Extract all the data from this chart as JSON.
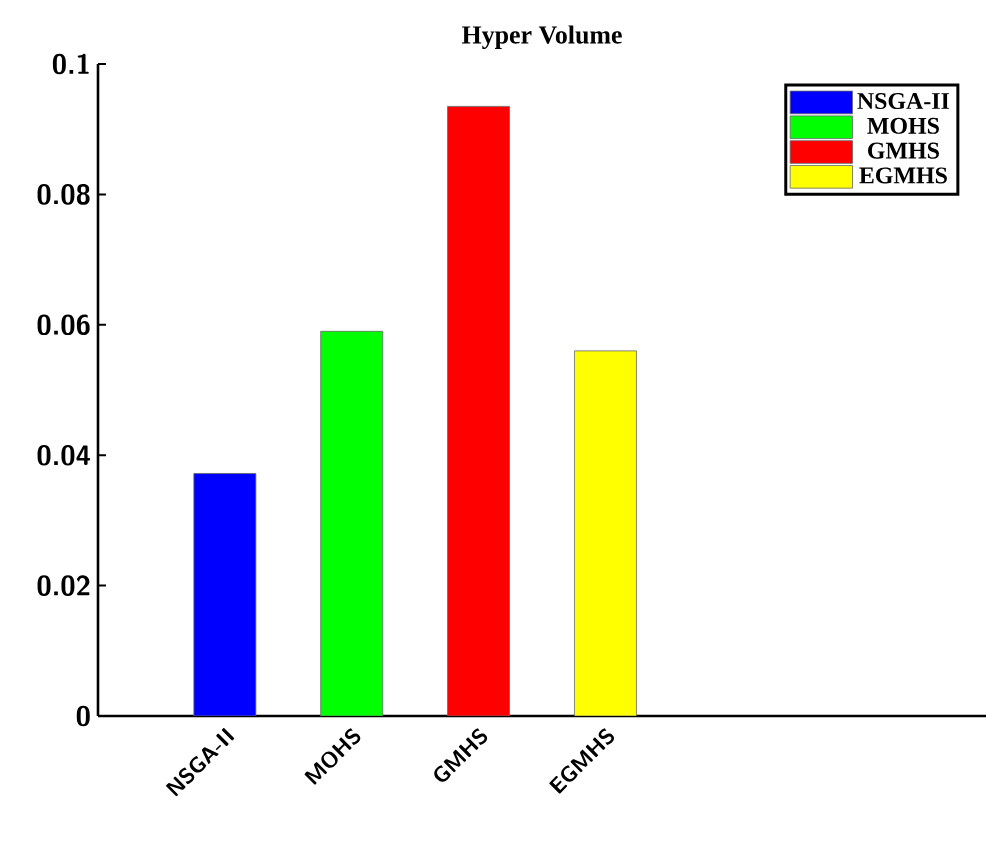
{
  "chart_data": {
    "type": "bar",
    "title": "Hyper Volume",
    "categories": [
      "NSGA-II",
      "MOHS",
      "GMHS",
      "EGMHS"
    ],
    "series": [
      {
        "name": "NSGA-II",
        "color": "#0000ff",
        "values": [
          0.0372,
          null,
          null,
          null
        ]
      },
      {
        "name": "MOHS",
        "color": "#00ff00",
        "values": [
          null,
          0.059,
          null,
          null
        ]
      },
      {
        "name": "GMHS",
        "color": "#ff0000",
        "values": [
          null,
          null,
          0.0935,
          null
        ]
      },
      {
        "name": "EGMHS",
        "color": "#ffff00",
        "values": [
          null,
          null,
          null,
          0.056
        ]
      }
    ],
    "ylim": [
      0,
      0.1
    ],
    "yticks": [
      0,
      0.02,
      0.04,
      0.06,
      0.08,
      0.1
    ],
    "grid": false,
    "legend": "top right"
  }
}
